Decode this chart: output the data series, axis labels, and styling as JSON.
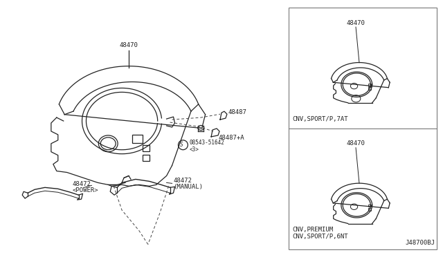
{
  "bg_color": "#ffffff",
  "line_color": "#222222",
  "dashed_color": "#444444",
  "part_48470_main": "48470",
  "part_48487": "48487",
  "part_48487A": "48487+A",
  "part_48472_power": "48472\n<POWER>",
  "part_48472_manual": "48472\n(MANUAL)",
  "copyright_text": "©08543-51642\n  <3>",
  "variant1_label": "48470",
  "variant1_sub": "CNV,SPORT/P,7AT",
  "variant2_label": "48470",
  "variant2_sub1": "CNV,PREMIUM",
  "variant2_sub2": "CNV,SPORT/P,6NT",
  "diagram_ref": "J48700BJ",
  "fig_width": 6.4,
  "fig_height": 3.72,
  "dpi": 100
}
